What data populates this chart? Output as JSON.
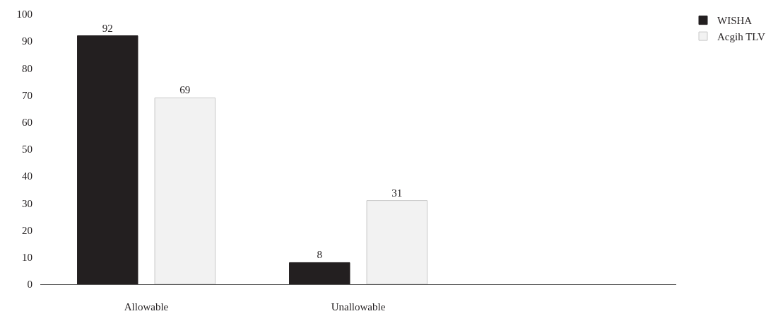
{
  "chart_data": {
    "type": "bar",
    "categories": [
      "Allowable",
      "Unallowable",
      null
    ],
    "series": [
      {
        "name": "WISHA",
        "color": "#231f20",
        "values": [
          92,
          8,
          null
        ]
      },
      {
        "name": "Acgih TLV",
        "color": "#f2f2f2",
        "values": [
          69,
          31,
          null
        ]
      }
    ],
    "ylim": [
      0,
      100
    ],
    "yticks": [
      0,
      10,
      20,
      30,
      40,
      50,
      60,
      70,
      80,
      90,
      100
    ],
    "data_labels": true,
    "legend": "top right"
  }
}
